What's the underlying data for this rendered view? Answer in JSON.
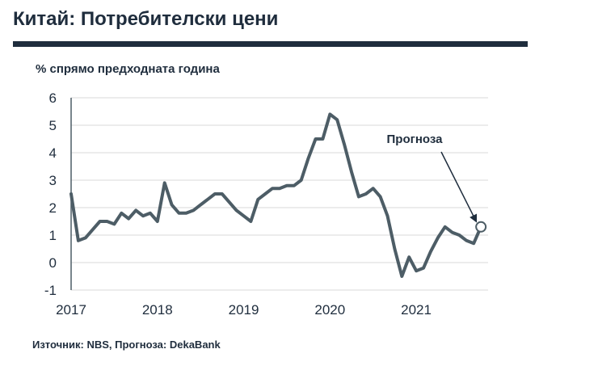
{
  "title": "Китай: Потребителски цени",
  "source": "Източник: NBS, Прогноза: DekaBank",
  "colors": {
    "line": "#4d5d66",
    "title": "#1f2d3d",
    "grid": "#d9d9d9"
  },
  "chart_data": {
    "type": "line",
    "title": "",
    "ylabel": "% спрямо предходната година",
    "xlabel": "",
    "ylim": [
      -1,
      6
    ],
    "yticks": [
      -1,
      0,
      1,
      2,
      3,
      4,
      5,
      6
    ],
    "xlim": [
      2017.0,
      2021.833
    ],
    "xticks": [
      {
        "value": 2017,
        "label": "2017"
      },
      {
        "value": 2018,
        "label": "2018"
      },
      {
        "value": 2019,
        "label": "2019"
      },
      {
        "value": 2020,
        "label": "2020"
      },
      {
        "value": 2021,
        "label": "2021"
      }
    ],
    "grid": true,
    "series": [
      {
        "x": [
          "2017-01",
          "2017-02",
          "2017-03",
          "2017-04",
          "2017-05",
          "2017-06",
          "2017-07",
          "2017-08",
          "2017-09",
          "2017-10",
          "2017-11",
          "2017-12",
          "2018-01",
          "2018-02",
          "2018-03",
          "2018-04",
          "2018-05",
          "2018-06",
          "2018-07",
          "2018-08",
          "2018-09",
          "2018-10",
          "2018-11",
          "2018-12",
          "2019-01",
          "2019-02",
          "2019-03",
          "2019-04",
          "2019-05",
          "2019-06",
          "2019-07",
          "2019-08",
          "2019-09",
          "2019-10",
          "2019-11",
          "2019-12",
          "2020-01",
          "2020-02",
          "2020-03",
          "2020-04",
          "2020-05",
          "2020-06",
          "2020-07",
          "2020-08",
          "2020-09",
          "2020-10",
          "2020-11",
          "2020-12",
          "2021-01",
          "2021-02",
          "2021-03",
          "2021-04",
          "2021-05",
          "2021-06",
          "2021-07",
          "2021-08",
          "2021-09",
          "2021-10"
        ],
        "values": [
          2.5,
          0.8,
          0.9,
          1.2,
          1.5,
          1.5,
          1.4,
          1.8,
          1.6,
          1.9,
          1.7,
          1.8,
          1.5,
          2.9,
          2.1,
          1.8,
          1.8,
          1.9,
          2.1,
          2.3,
          2.5,
          2.5,
          2.2,
          1.9,
          1.7,
          1.5,
          2.3,
          2.5,
          2.7,
          2.7,
          2.8,
          2.8,
          3.0,
          3.8,
          4.5,
          4.5,
          5.4,
          5.2,
          4.3,
          3.3,
          2.4,
          2.5,
          2.7,
          2.4,
          1.7,
          0.5,
          -0.5,
          0.2,
          -0.3,
          -0.2,
          0.4,
          0.9,
          1.3,
          1.1,
          1.0,
          0.8,
          0.7,
          1.3
        ]
      }
    ],
    "forecast_point": {
      "x": "2021-10",
      "y": 1.3
    },
    "annotation": {
      "text": "Прогноза"
    }
  }
}
